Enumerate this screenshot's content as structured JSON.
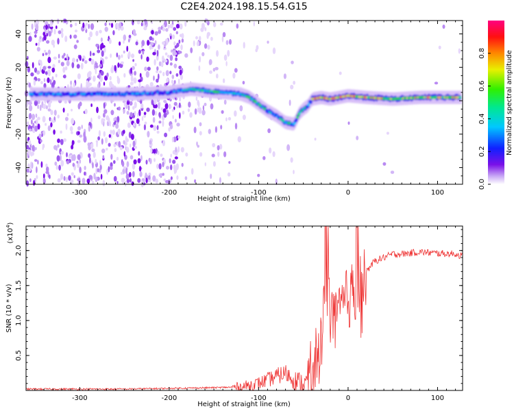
{
  "chart_data": [
    {
      "type": "heatmap",
      "title": "C2E4.2024.198.15.54.G15",
      "xlabel": "Height of straight line (km)",
      "ylabel": "Frequency (Hz)",
      "xlim": [
        -360,
        128
      ],
      "ylim": [
        -50,
        48
      ],
      "xticks": [
        "-300",
        "-200",
        "-100",
        "0",
        "100"
      ],
      "yticks": [
        "40",
        "20",
        "0",
        "-20",
        "-40"
      ],
      "ridge": {
        "x": [
          -355,
          -300,
          -250,
          -200,
          -175,
          -160,
          -140,
          -120,
          -110,
          -100,
          -90,
          -80,
          -70,
          -60,
          -55,
          -50,
          -45,
          -40,
          -30,
          -20,
          -10,
          0,
          20,
          50,
          80,
          100,
          128
        ],
        "y": [
          4,
          4,
          4,
          5,
          7,
          6,
          5,
          4,
          2,
          -2,
          -6,
          -9,
          -13,
          -14,
          -8,
          -5,
          -3,
          1,
          2,
          1,
          2,
          3,
          2,
          1,
          2,
          2,
          2
        ]
      },
      "colorbar": {
        "label": "Normalized spectral amplitude",
        "ticks": [
          "0.0",
          "0.2",
          "0.4",
          "0.6",
          "0.8"
        ],
        "range": [
          0,
          1
        ]
      }
    },
    {
      "type": "line",
      "xlabel": "Height of straight line (km)",
      "ylabel": "SNR (10 * v/v)",
      "y_multiplier": "(x10",
      "y_multiplier_exp": "4",
      "y_multiplier_close": ")",
      "xlim": [
        -360,
        128
      ],
      "ylim": [
        0,
        2.35
      ],
      "xticks": [
        "-300",
        "-200",
        "-100",
        "0",
        "100"
      ],
      "yticks": [
        "2.0",
        "1.5",
        "1.0",
        "0.5"
      ],
      "line_color": "#ee3030",
      "series": [
        {
          "x": [
            -360,
            -300,
            -250,
            -200,
            -150,
            -120,
            -100,
            -80,
            -70,
            -60,
            -50,
            -40,
            -35,
            -30,
            -25,
            -20,
            -15,
            -10,
            -5,
            0,
            5,
            10,
            15,
            20,
            30,
            40,
            50,
            60,
            80,
            100,
            120,
            128
          ],
          "y": [
            0.02,
            0.02,
            0.02,
            0.03,
            0.04,
            0.05,
            0.1,
            0.2,
            0.25,
            0.15,
            0.1,
            0.12,
            0.3,
            0.9,
            1.2,
            1.3,
            1.0,
            1.1,
            1.2,
            1.3,
            1.5,
            1.2,
            1.4,
            1.7,
            1.85,
            1.9,
            1.95,
            1.95,
            1.98,
            1.96,
            1.95,
            1.92
          ]
        }
      ]
    }
  ]
}
